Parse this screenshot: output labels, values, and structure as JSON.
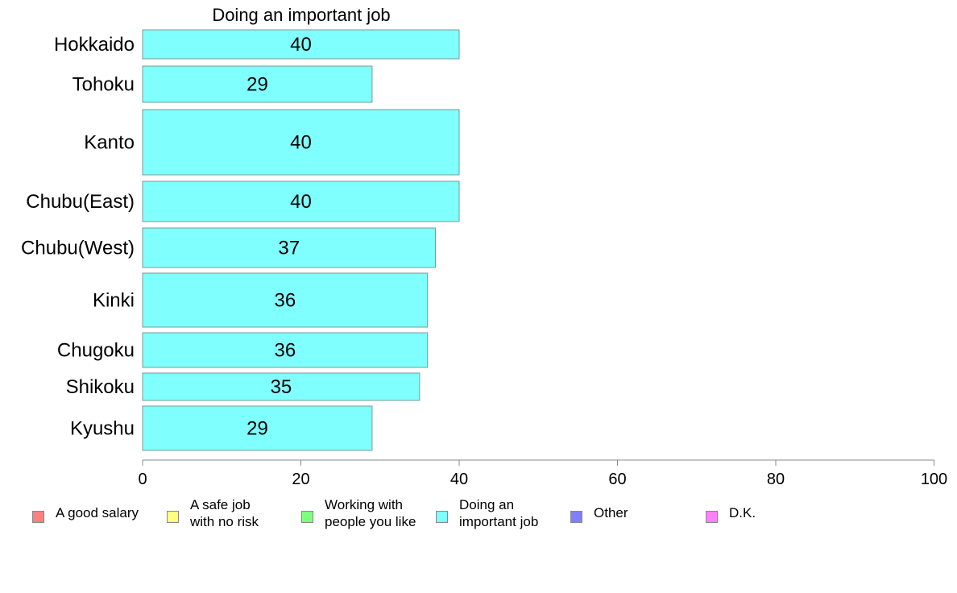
{
  "chart_data": {
    "type": "bar",
    "orientation": "horizontal",
    "title": "Doing an important job",
    "categories": [
      "Hokkaido",
      "Tohoku",
      "Kanto",
      "Chubu(East)",
      "Chubu(West)",
      "Kinki",
      "Chugoku",
      "Shikoku",
      "Kyushu"
    ],
    "values": [
      40,
      29,
      40,
      40,
      37,
      36,
      36,
      35,
      29
    ],
    "bar_color": "#80ffff",
    "xlim": [
      0,
      100
    ],
    "xticks": [
      0,
      20,
      40,
      60,
      80,
      100
    ],
    "grid": false,
    "legend_position": "bottom",
    "legend": [
      {
        "label": "A good salary",
        "color": "#ff8080"
      },
      {
        "label": "A safe job\nwith no risk",
        "color": "#ffff80"
      },
      {
        "label": "Working with\npeople you like",
        "color": "#80ff80"
      },
      {
        "label": "Doing an\nimportant job",
        "color": "#80ffff"
      },
      {
        "label": "Other",
        "color": "#8080ff"
      },
      {
        "label": "D.K.",
        "color": "#ff80ff"
      }
    ]
  }
}
